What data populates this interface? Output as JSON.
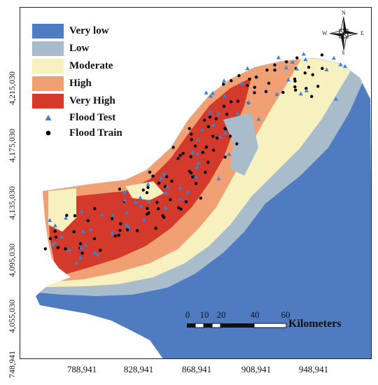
{
  "legend": {
    "classes": [
      {
        "label": "Very low",
        "color": "#4f7cc0"
      },
      {
        "label": "Low",
        "color": "#a9bccb"
      },
      {
        "label": "Moderate",
        "color": "#f7f0bf"
      },
      {
        "label": "High",
        "color": "#f1a074"
      },
      {
        "label": "Very High",
        "color": "#d33a2c"
      }
    ],
    "test_label": "Flood Test",
    "test_color": "#3a82d6",
    "train_label": "Flood Train",
    "train_color": "#000000"
  },
  "axes": {
    "y_ticks": [
      "4,215,030",
      "4,175,030",
      "4,135,030",
      "4,095,030",
      "4,055,030",
      "748,941"
    ],
    "x_ticks": [
      "788,941",
      "828,941",
      "868,941",
      "908,941",
      "948,941"
    ]
  },
  "north_arrow": {
    "n": "N",
    "s": "S",
    "e": "E",
    "w": "W"
  },
  "scale_bar": {
    "ticks": [
      "0",
      "10",
      "20",
      "40",
      "60"
    ],
    "units": "Kilometers"
  }
}
